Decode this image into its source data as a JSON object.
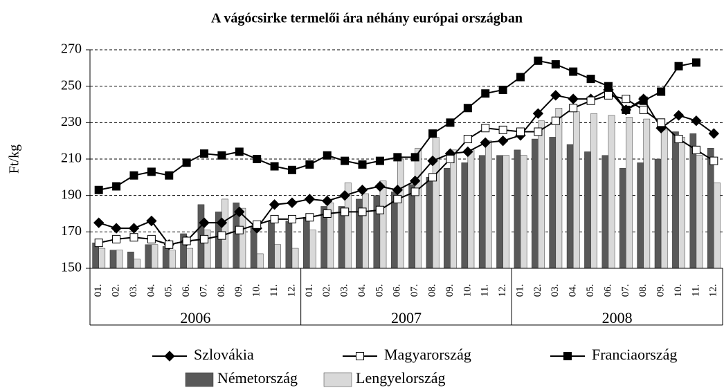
{
  "chart_data": {
    "type": "combo",
    "title": "A vágócsirke termelői ára néhány európai országban",
    "y_label": "Ft/kg",
    "categories": [
      "01.",
      "02.",
      "03.",
      "04.",
      "05.",
      "06.",
      "07.",
      "08.",
      "09.",
      "10.",
      "11.",
      "12.",
      "01.",
      "02.",
      "03.",
      "04.",
      "05.",
      "06.",
      "07.",
      "08.",
      "09.",
      "10.",
      "11.",
      "12.",
      "01.",
      "02.",
      "03.",
      "04.",
      "05.",
      "06.",
      "07.",
      "08.",
      "09.",
      "10.",
      "11.",
      "12."
    ],
    "groups": [
      "2006",
      "2007",
      "2008"
    ],
    "ylim": [
      150,
      270
    ],
    "yticks": [
      150,
      170,
      190,
      210,
      230,
      250,
      270
    ],
    "grid": true,
    "series": [
      {
        "name": "Szlovákia",
        "type": "line",
        "marker": "diamond",
        "color": "#000000",
        "values": [
          175,
          172,
          172,
          176,
          163,
          165,
          175,
          175,
          181,
          172,
          185,
          186,
          188,
          187,
          190,
          193,
          195,
          193,
          198,
          209,
          213,
          214,
          219,
          220,
          223,
          235,
          245,
          243,
          243,
          248,
          237,
          243,
          227,
          234,
          231,
          224
        ]
      },
      {
        "name": "Magyarország",
        "type": "line",
        "marker": "square-open",
        "color": "#000000",
        "values": [
          164,
          166,
          167,
          166,
          163,
          165,
          166,
          168,
          171,
          174,
          177,
          177,
          178,
          180,
          181,
          181,
          182,
          188,
          192,
          200,
          210,
          221,
          227,
          226,
          225,
          225,
          231,
          238,
          242,
          245,
          243,
          237,
          230,
          221,
          215,
          209
        ]
      },
      {
        "name": "Franciaország",
        "type": "line",
        "marker": "square",
        "color": "#000000",
        "values": [
          193,
          195,
          201,
          203,
          201,
          208,
          213,
          212,
          214,
          210,
          206,
          204,
          207,
          212,
          209,
          207,
          209,
          211,
          211,
          224,
          230,
          238,
          246,
          248,
          255,
          264,
          262,
          258,
          254,
          250,
          237,
          242,
          247,
          261,
          263,
          null
        ]
      },
      {
        "name": "Németország",
        "type": "bar",
        "color": "#595959",
        "values": [
          164,
          160,
          159,
          163,
          162,
          169,
          185,
          181,
          186,
          173,
          176,
          176,
          178,
          184,
          184,
          188,
          190,
          192,
          196,
          200,
          205,
          208,
          212,
          212,
          215,
          221,
          222,
          218,
          214,
          212,
          205,
          208,
          210,
          225,
          224,
          216
        ]
      },
      {
        "name": "Lengyelország",
        "type": "bar",
        "color": "#d9d9d9",
        "values": [
          161,
          160,
          155,
          163,
          160,
          161,
          171,
          188,
          183,
          158,
          163,
          161,
          171,
          186,
          197,
          191,
          198,
          210,
          216,
          222,
          215,
          215,
          220,
          212,
          212,
          231,
          238,
          236,
          235,
          234,
          233,
          232,
          226,
          222,
          212,
          197
        ]
      }
    ]
  }
}
